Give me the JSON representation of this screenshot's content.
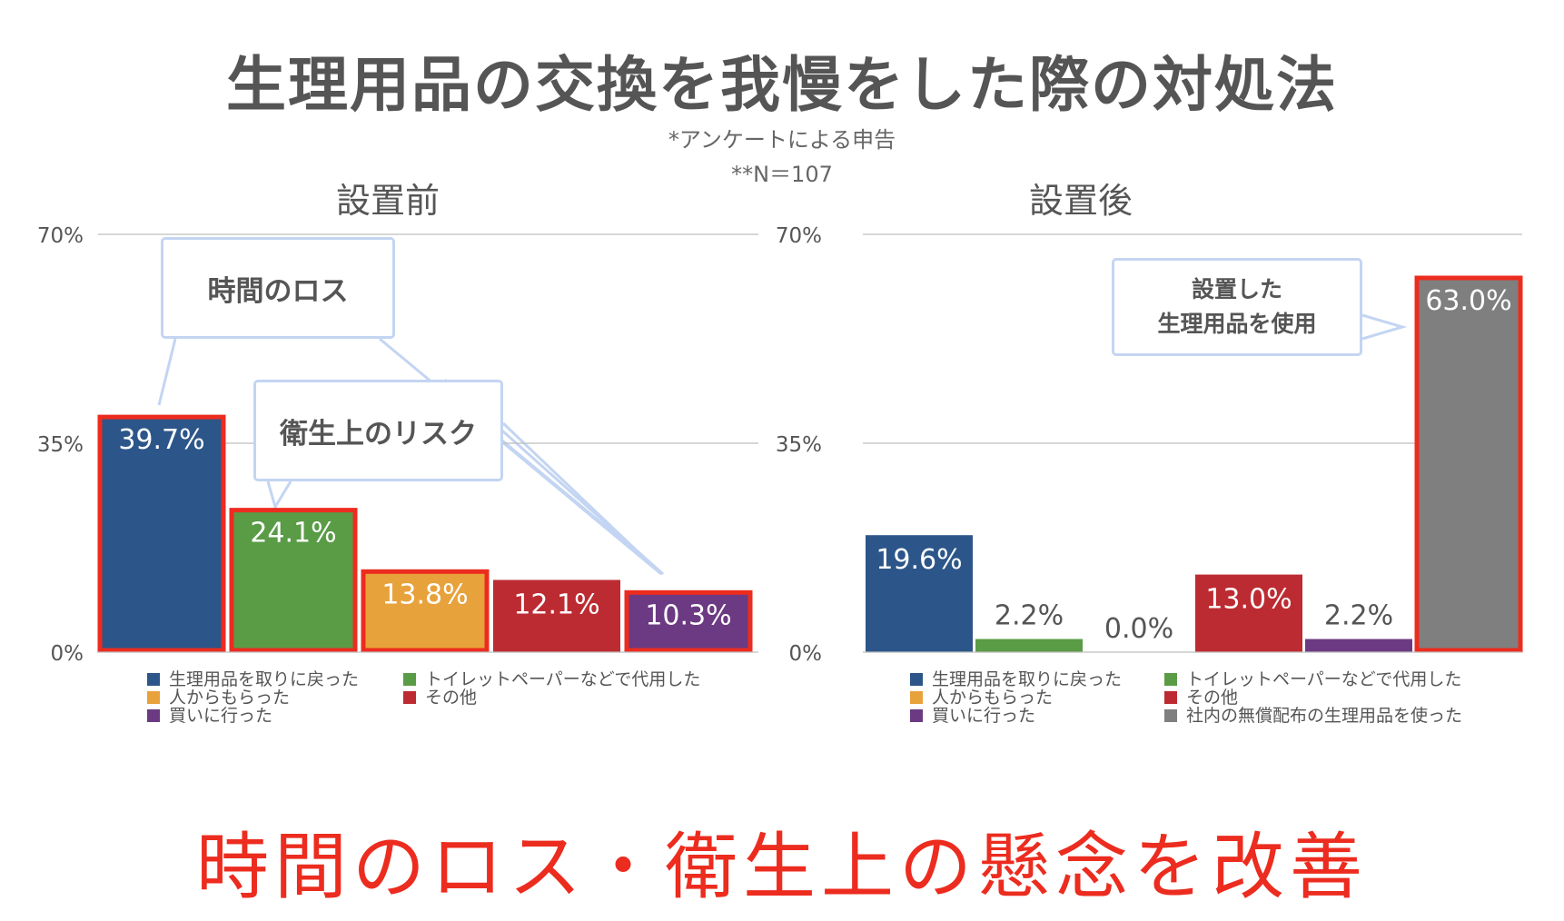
{
  "title": "生理用品の交換を我慢をした際の対処法",
  "notes": [
    "*アンケートによる申告",
    "**N＝107"
  ],
  "conclusion": "時間のロス・衛生上の懸念を改善",
  "colors": {
    "blue": "#2c5689",
    "green": "#5a9b46",
    "orange": "#e8a23b",
    "red": "#bd2b32",
    "purple": "#6c3a82",
    "gray": "#7f7f7f",
    "highlight": "#ec2c1f",
    "callout_border": "#c3d5f2"
  },
  "callouts": {
    "time_loss": "時間のロス",
    "hygiene_risk": "衛生上のリスク",
    "used_installed": [
      "設置した",
      "生理用品を使用"
    ]
  },
  "chart_data": [
    {
      "type": "bar",
      "title": "設置前",
      "ylim": [
        0,
        70
      ],
      "yticks": [
        "0%",
        "35%",
        "70%"
      ],
      "categories": [
        "生理用品を取りに戻った",
        "トイレットペーパーなどで代用した",
        "人からもらった",
        "その他",
        "買いに行った"
      ],
      "values": [
        39.7,
        24.1,
        13.8,
        12.1,
        10.3
      ],
      "labels": [
        "39.7%",
        "24.1%",
        "13.8%",
        "12.1%",
        "10.3%"
      ],
      "colors": [
        "#2c5689",
        "#5a9b46",
        "#e8a23b",
        "#bd2b32",
        "#6c3a82"
      ],
      "highlighted": [
        true,
        true,
        true,
        false,
        true
      ]
    },
    {
      "type": "bar",
      "title": "設置後",
      "ylim": [
        0,
        70
      ],
      "yticks": [
        "0%",
        "35%",
        "70%"
      ],
      "categories": [
        "生理用品を取りに戻った",
        "トイレットペーパーなどで代用した",
        "人からもらった",
        "その他",
        "買いに行った",
        "社内の無償配布の生理用品を使った"
      ],
      "values": [
        19.6,
        2.2,
        0.0,
        13.0,
        2.2,
        63.0
      ],
      "labels": [
        "19.6%",
        "2.2%",
        "0.0%",
        "13.0%",
        "2.2%",
        "63.0%"
      ],
      "colors": [
        "#2c5689",
        "#5a9b46",
        "#e8a23b",
        "#bd2b32",
        "#6c3a82",
        "#7f7f7f"
      ],
      "highlighted": [
        false,
        false,
        false,
        false,
        false,
        true
      ]
    }
  ]
}
